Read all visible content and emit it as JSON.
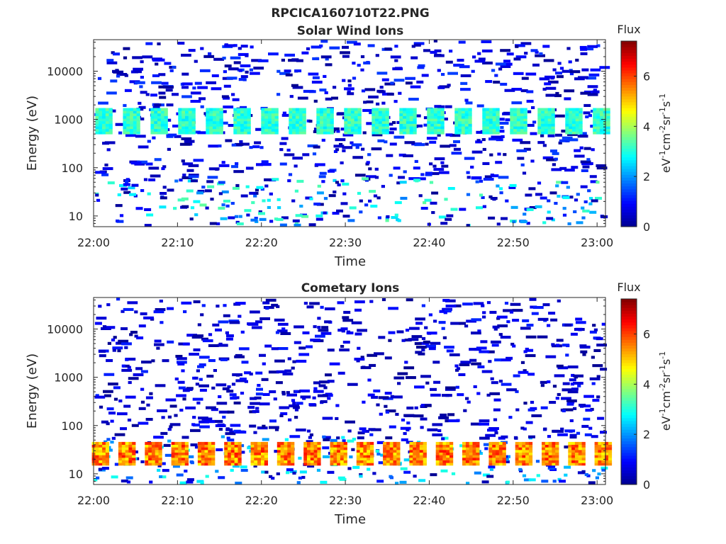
{
  "figure": {
    "title": "RPCICA160710T22.PNG"
  },
  "colors": {
    "jet": [
      "#00008f",
      "#0000ff",
      "#0080ff",
      "#00ffff",
      "#80ff80",
      "#ffff00",
      "#ff8000",
      "#ff0000",
      "#800000"
    ],
    "axis": "#262626"
  },
  "chart_data": [
    {
      "type": "heatmap",
      "title": "Solar Wind Ions",
      "xlabel": "Time",
      "ylabel": "Energy (eV)",
      "xtick_labels": [
        "22:00",
        "22:10",
        "22:20",
        "22:30",
        "22:40",
        "22:50",
        "23:00"
      ],
      "xticks_minutes": [
        0,
        10,
        20,
        30,
        40,
        50,
        60
      ],
      "xlim_minutes": [
        0,
        61
      ],
      "ytick_labels": [
        "10",
        "100",
        "1000",
        "10000"
      ],
      "yticks": [
        10,
        100,
        1000,
        10000
      ],
      "ylim": [
        6,
        45000
      ],
      "yscale": "log",
      "colorbar": {
        "title": "Flux",
        "label": "eV⁻¹cm⁻²sr⁻¹s⁻¹",
        "range": [
          0,
          7.4
        ],
        "ticks": [
          0,
          2,
          4,
          6
        ]
      },
      "band_series": [
        {
          "name": "",
          "t_start": 1.4,
          "t_end": 60.7,
          "count": 19,
          "e_low": 500,
          "e_high": 1700,
          "flux_min": 2.6,
          "flux_max": 3.6
        }
      ],
      "sparse_flux_range": [
        0,
        1.4
      ],
      "low_energy_flux_range": [
        1.5,
        3.5
      ]
    },
    {
      "type": "heatmap",
      "title": "Cometary Ions",
      "xlabel": "Time",
      "ylabel": "Energy (eV)",
      "xtick_labels": [
        "22:00",
        "22:10",
        "22:20",
        "22:30",
        "22:40",
        "22:50",
        "23:00"
      ],
      "xticks_minutes": [
        0,
        10,
        20,
        30,
        40,
        50,
        60
      ],
      "xlim_minutes": [
        0,
        61
      ],
      "ytick_labels": [
        "10",
        "100",
        "1000",
        "10000"
      ],
      "yticks": [
        10,
        100,
        1000,
        10000
      ],
      "ylim": [
        6,
        45000
      ],
      "yscale": "log",
      "colorbar": {
        "title": "Flux",
        "label": "eV⁻¹cm⁻²sr⁻¹s⁻¹",
        "range": [
          0,
          7.4
        ],
        "ticks": [
          0,
          2,
          4,
          6
        ]
      },
      "band_series": [
        {
          "name": "",
          "t_start": 1.0,
          "t_end": 60.9,
          "count": 20,
          "e_low": 15,
          "e_high": 45,
          "flux_min": 4.6,
          "flux_max": 6.4
        }
      ],
      "sparse_flux_range": [
        0,
        1.2
      ],
      "low_energy_flux_range": [
        1.5,
        3.0
      ]
    }
  ]
}
